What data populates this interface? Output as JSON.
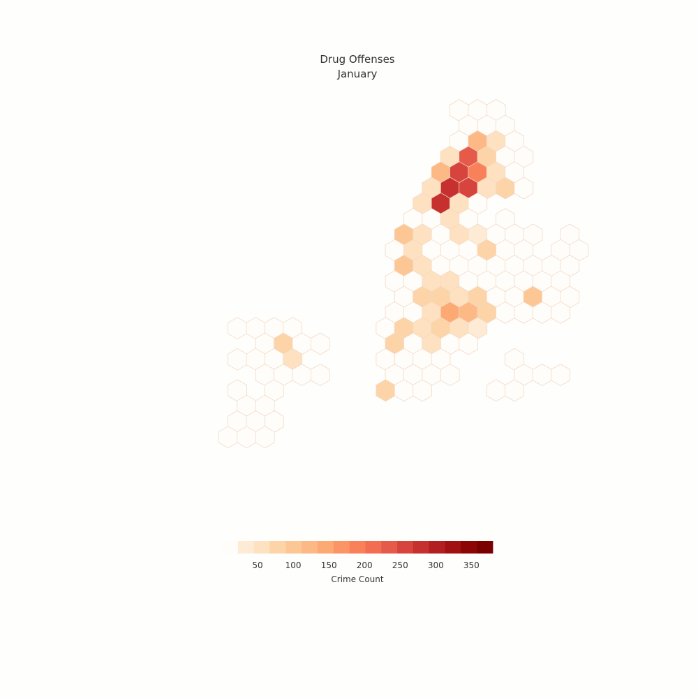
{
  "chart_data": {
    "type": "heatmap",
    "title": "Drug Offenses",
    "subtitle": "January",
    "colorbar": {
      "label": "Crime Count",
      "ticks": [
        50,
        100,
        150,
        200,
        250,
        300,
        350
      ],
      "range": [
        0,
        380
      ]
    },
    "colors": [
      "#fffdfa",
      "#fdebd6",
      "#fde1c0",
      "#fdd4a8",
      "#fdc795",
      "#fdb985",
      "#fca974",
      "#fb9565",
      "#f8815a",
      "#f26d52",
      "#e65a4a",
      "#d7443d",
      "#c6312f",
      "#b31e21",
      "#a11013",
      "#8c0606",
      "#7a0000"
    ],
    "hex_cells": [
      {
        "row": 0,
        "col": 11,
        "value": 0
      },
      {
        "row": 0,
        "col": 12,
        "value": 0
      },
      {
        "row": 0,
        "col": 13,
        "value": 0
      },
      {
        "row": 1,
        "col": 11,
        "value": 0
      },
      {
        "row": 1,
        "col": 12,
        "value": 0
      },
      {
        "row": 1,
        "col": 13,
        "value": 0
      },
      {
        "row": 2,
        "col": 11,
        "value": 0
      },
      {
        "row": 2,
        "col": 12,
        "value": 110
      },
      {
        "row": 2,
        "col": 13,
        "value": 40
      },
      {
        "row": 2,
        "col": 14,
        "value": 0
      },
      {
        "row": 3,
        "col": 10,
        "value": 40
      },
      {
        "row": 3,
        "col": 11,
        "value": 220
      },
      {
        "row": 3,
        "col": 12,
        "value": 50
      },
      {
        "row": 3,
        "col": 13,
        "value": 0
      },
      {
        "row": 3,
        "col": 14,
        "value": 0
      },
      {
        "row": 4,
        "col": 10,
        "value": 110
      },
      {
        "row": 4,
        "col": 11,
        "value": 250
      },
      {
        "row": 4,
        "col": 12,
        "value": 170
      },
      {
        "row": 4,
        "col": 13,
        "value": 40
      },
      {
        "row": 4,
        "col": 14,
        "value": 0
      },
      {
        "row": 5,
        "col": 9,
        "value": 40
      },
      {
        "row": 5,
        "col": 10,
        "value": 270
      },
      {
        "row": 5,
        "col": 11,
        "value": 260
      },
      {
        "row": 5,
        "col": 12,
        "value": 30
      },
      {
        "row": 5,
        "col": 13,
        "value": 50
      },
      {
        "row": 5,
        "col": 14,
        "value": 0
      },
      {
        "row": 6,
        "col": 9,
        "value": 40
      },
      {
        "row": 6,
        "col": 10,
        "value": 270
      },
      {
        "row": 6,
        "col": 11,
        "value": 40
      },
      {
        "row": 6,
        "col": 12,
        "value": 0
      },
      {
        "row": 7,
        "col": 8,
        "value": 0
      },
      {
        "row": 7,
        "col": 9,
        "value": 0
      },
      {
        "row": 7,
        "col": 10,
        "value": 25
      },
      {
        "row": 7,
        "col": 11,
        "value": 0
      },
      {
        "row": 7,
        "col": 13,
        "value": 0
      },
      {
        "row": 8,
        "col": 8,
        "value": 90
      },
      {
        "row": 8,
        "col": 9,
        "value": 30
      },
      {
        "row": 8,
        "col": 10,
        "value": 0
      },
      {
        "row": 8,
        "col": 11,
        "value": 40
      },
      {
        "row": 8,
        "col": 12,
        "value": 20
      },
      {
        "row": 8,
        "col": 13,
        "value": 0
      },
      {
        "row": 8,
        "col": 14,
        "value": 0
      },
      {
        "row": 8,
        "col": 15,
        "value": 0
      },
      {
        "row": 8,
        "col": 17,
        "value": 0
      },
      {
        "row": 9,
        "col": 7,
        "value": 0
      },
      {
        "row": 9,
        "col": 8,
        "value": 40
      },
      {
        "row": 9,
        "col": 9,
        "value": 0
      },
      {
        "row": 9,
        "col": 10,
        "value": 0
      },
      {
        "row": 9,
        "col": 11,
        "value": 0
      },
      {
        "row": 9,
        "col": 12,
        "value": 60
      },
      {
        "row": 9,
        "col": 13,
        "value": 0
      },
      {
        "row": 9,
        "col": 14,
        "value": 0
      },
      {
        "row": 9,
        "col": 16,
        "value": 0
      },
      {
        "row": 9,
        "col": 17,
        "value": 0
      },
      {
        "row": 10,
        "col": 8,
        "value": 90
      },
      {
        "row": 10,
        "col": 9,
        "value": 40
      },
      {
        "row": 10,
        "col": 10,
        "value": 0
      },
      {
        "row": 10,
        "col": 11,
        "value": 0
      },
      {
        "row": 10,
        "col": 12,
        "value": 0
      },
      {
        "row": 10,
        "col": 13,
        "value": 0
      },
      {
        "row": 10,
        "col": 14,
        "value": 0
      },
      {
        "row": 10,
        "col": 15,
        "value": 0
      },
      {
        "row": 10,
        "col": 16,
        "value": 0
      },
      {
        "row": 10,
        "col": 17,
        "value": 0
      },
      {
        "row": 11,
        "col": 7,
        "value": 0
      },
      {
        "row": 11,
        "col": 8,
        "value": 0
      },
      {
        "row": 11,
        "col": 9,
        "value": 40
      },
      {
        "row": 11,
        "col": 10,
        "value": 30
      },
      {
        "row": 11,
        "col": 11,
        "value": 0
      },
      {
        "row": 11,
        "col": 12,
        "value": 0
      },
      {
        "row": 11,
        "col": 13,
        "value": 0
      },
      {
        "row": 11,
        "col": 14,
        "value": 0
      },
      {
        "row": 11,
        "col": 15,
        "value": 0
      },
      {
        "row": 11,
        "col": 16,
        "value": 0
      },
      {
        "row": 12,
        "col": 8,
        "value": 0
      },
      {
        "row": 12,
        "col": 9,
        "value": 50
      },
      {
        "row": 12,
        "col": 10,
        "value": 70
      },
      {
        "row": 12,
        "col": 11,
        "value": 40
      },
      {
        "row": 12,
        "col": 12,
        "value": 50
      },
      {
        "row": 12,
        "col": 13,
        "value": 0
      },
      {
        "row": 12,
        "col": 14,
        "value": 0
      },
      {
        "row": 12,
        "col": 15,
        "value": 80
      },
      {
        "row": 12,
        "col": 16,
        "value": 0
      },
      {
        "row": 12,
        "col": 17,
        "value": 0
      },
      {
        "row": 13,
        "col": 7,
        "value": 0
      },
      {
        "row": 13,
        "col": 8,
        "value": 0
      },
      {
        "row": 13,
        "col": 9,
        "value": 40
      },
      {
        "row": 13,
        "col": 10,
        "value": 120
      },
      {
        "row": 13,
        "col": 11,
        "value": 110
      },
      {
        "row": 13,
        "col": 12,
        "value": 70
      },
      {
        "row": 13,
        "col": 13,
        "value": 0
      },
      {
        "row": 13,
        "col": 14,
        "value": 0
      },
      {
        "row": 13,
        "col": 15,
        "value": 0
      },
      {
        "row": 13,
        "col": 16,
        "value": 0
      },
      {
        "row": 14,
        "col": 0,
        "value": 0
      },
      {
        "row": 14,
        "col": 1,
        "value": 0
      },
      {
        "row": 14,
        "col": 2,
        "value": 0
      },
      {
        "row": 14,
        "col": 3,
        "value": 0
      },
      {
        "row": 14,
        "col": 7,
        "value": 0
      },
      {
        "row": 14,
        "col": 8,
        "value": 50
      },
      {
        "row": 14,
        "col": 9,
        "value": 40
      },
      {
        "row": 14,
        "col": 10,
        "value": 60
      },
      {
        "row": 14,
        "col": 11,
        "value": 30
      },
      {
        "row": 14,
        "col": 12,
        "value": 20
      },
      {
        "row": 15,
        "col": 1,
        "value": 0
      },
      {
        "row": 15,
        "col": 2,
        "value": 70
      },
      {
        "row": 15,
        "col": 3,
        "value": 0
      },
      {
        "row": 15,
        "col": 4,
        "value": 0
      },
      {
        "row": 15,
        "col": 7,
        "value": 50
      },
      {
        "row": 15,
        "col": 8,
        "value": 0
      },
      {
        "row": 15,
        "col": 9,
        "value": 40
      },
      {
        "row": 15,
        "col": 10,
        "value": 0
      },
      {
        "row": 15,
        "col": 11,
        "value": 0
      },
      {
        "row": 16,
        "col": 0,
        "value": 0
      },
      {
        "row": 16,
        "col": 1,
        "value": 0
      },
      {
        "row": 16,
        "col": 2,
        "value": 0
      },
      {
        "row": 16,
        "col": 3,
        "value": 40
      },
      {
        "row": 16,
        "col": 7,
        "value": 0
      },
      {
        "row": 16,
        "col": 8,
        "value": 0
      },
      {
        "row": 16,
        "col": 9,
        "value": 0
      },
      {
        "row": 16,
        "col": 10,
        "value": 0
      },
      {
        "row": 16,
        "col": 14,
        "value": 0
      },
      {
        "row": 17,
        "col": 1,
        "value": 0
      },
      {
        "row": 17,
        "col": 2,
        "value": 0
      },
      {
        "row": 17,
        "col": 3,
        "value": 0
      },
      {
        "row": 17,
        "col": 4,
        "value": 0
      },
      {
        "row": 17,
        "col": 7,
        "value": 0
      },
      {
        "row": 17,
        "col": 8,
        "value": 0
      },
      {
        "row": 17,
        "col": 9,
        "value": 0
      },
      {
        "row": 17,
        "col": 10,
        "value": 0
      },
      {
        "row": 17,
        "col": 14,
        "value": 0
      },
      {
        "row": 17,
        "col": 15,
        "value": 0
      },
      {
        "row": 17,
        "col": 16,
        "value": 0
      },
      {
        "row": 18,
        "col": 0,
        "value": 0
      },
      {
        "row": 18,
        "col": 2,
        "value": 0
      },
      {
        "row": 18,
        "col": 7,
        "value": 50
      },
      {
        "row": 18,
        "col": 8,
        "value": 0
      },
      {
        "row": 18,
        "col": 9,
        "value": 0
      },
      {
        "row": 18,
        "col": 13,
        "value": 0
      },
      {
        "row": 18,
        "col": 14,
        "value": 0
      },
      {
        "row": 19,
        "col": 0,
        "value": 0
      },
      {
        "row": 19,
        "col": 1,
        "value": 0
      },
      {
        "row": 20,
        "col": 0,
        "value": 0
      },
      {
        "row": 20,
        "col": 1,
        "value": 0
      },
      {
        "row": 20,
        "col": 2,
        "value": 0
      },
      {
        "row": 21,
        "col": -1,
        "value": 0
      },
      {
        "row": 21,
        "col": 0,
        "value": 0
      },
      {
        "row": 21,
        "col": 1,
        "value": 0
      }
    ]
  }
}
